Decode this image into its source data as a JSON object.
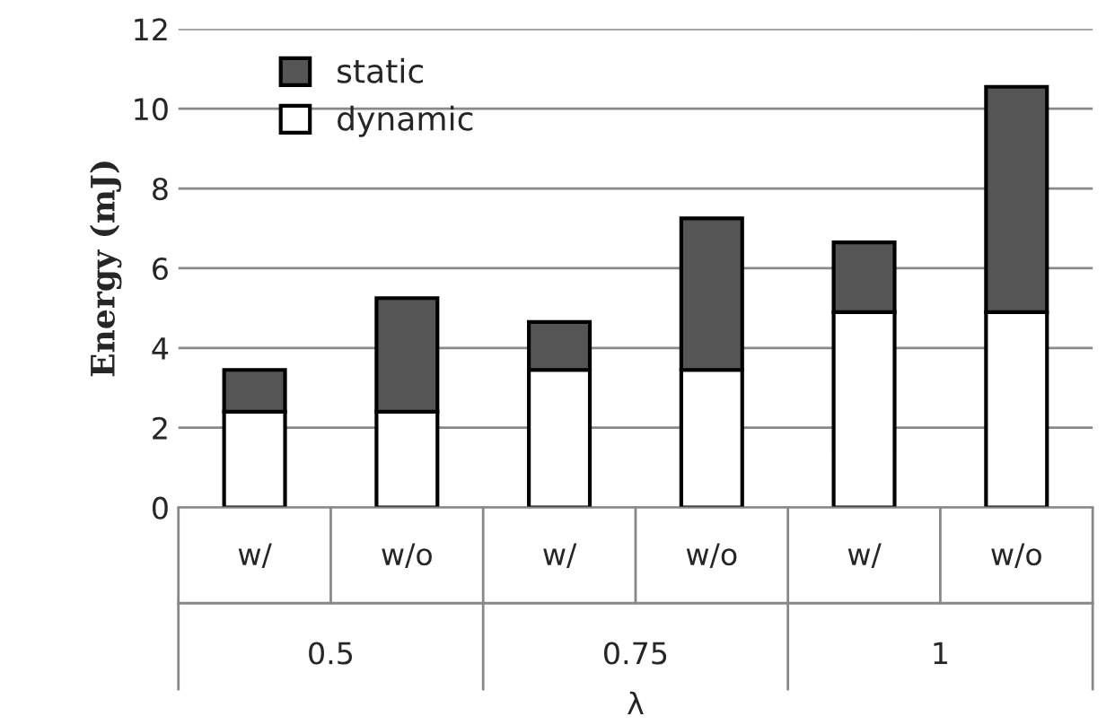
{
  "chart_data": {
    "type": "bar",
    "stacked": true,
    "ylabel": "Energy (mJ)",
    "xlabel": "λ",
    "categories": [
      "w/",
      "w/o",
      "w/",
      "w/o",
      "w/",
      "w/o"
    ],
    "series": [
      {
        "name": "dynamic",
        "color": "#ffffff",
        "values": [
          2.4,
          2.4,
          3.45,
          3.45,
          4.9,
          4.9
        ]
      },
      {
        "name": "static",
        "color": "#555555",
        "values": [
          1.05,
          2.85,
          1.2,
          3.8,
          1.75,
          5.65
        ]
      }
    ],
    "annotations": [
      "0.5",
      "0.75",
      "1"
    ],
    "ylim": [
      0,
      12
    ],
    "yticks": [
      0,
      2,
      4,
      6,
      8,
      10,
      12
    ],
    "grid": "y",
    "legend": "top left"
  }
}
